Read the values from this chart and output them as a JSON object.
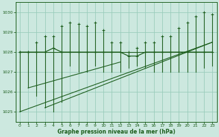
{
  "title": "Graphe pression niveau de la mer (hPa)",
  "bg_color": "#cce8df",
  "grid_color": "#99ccbb",
  "line_color": "#1a5c1a",
  "xlim": [
    -0.5,
    23.5
  ],
  "ylim": [
    1024.5,
    1030.5
  ],
  "yticks": [
    1025,
    1026,
    1027,
    1028,
    1029,
    1030
  ],
  "xticks": [
    0,
    1,
    2,
    3,
    4,
    5,
    6,
    7,
    8,
    9,
    10,
    11,
    12,
    13,
    14,
    15,
    16,
    17,
    18,
    19,
    20,
    21,
    22,
    23
  ],
  "hours": [
    0,
    1,
    2,
    3,
    4,
    5,
    6,
    7,
    8,
    9,
    10,
    11,
    12,
    13,
    14,
    15,
    16,
    17,
    18,
    19,
    20,
    21,
    22,
    23
  ],
  "pressure_main": [
    1028.0,
    1028.0,
    1028.0,
    1028.0,
    1028.2,
    1028.0,
    1028.0,
    1028.0,
    1028.0,
    1028.0,
    1028.0,
    1028.0,
    1028.0,
    1027.8,
    1027.8,
    1028.0,
    1028.0,
    1028.0,
    1028.0,
    1028.0,
    1028.0,
    1028.0,
    1028.0,
    1028.0
  ],
  "pressure_max": [
    1028.0,
    1028.0,
    1028.5,
    1028.8,
    1028.8,
    1029.3,
    1029.5,
    1029.4,
    1029.3,
    1029.5,
    1029.1,
    1028.5,
    1028.5,
    1028.0,
    1028.2,
    1028.5,
    1028.5,
    1028.8,
    1028.8,
    1029.2,
    1029.5,
    1029.8,
    1030.0,
    1029.9
  ],
  "pressure_min": [
    1025.0,
    1026.2,
    1025.8,
    1025.2,
    1025.0,
    1025.5,
    1027.3,
    1027.0,
    1027.0,
    1027.3,
    1027.0,
    1027.0,
    1027.0,
    1027.2,
    1027.3,
    1027.2,
    1027.0,
    1027.0,
    1027.0,
    1027.0,
    1027.0,
    1027.0,
    1027.2,
    1027.3
  ],
  "trend_lines": [
    {
      "x": [
        0,
        23
      ],
      "y": [
        1028.0,
        1028.0
      ]
    },
    {
      "x": [
        0,
        23
      ],
      "y": [
        1025.0,
        1028.5
      ]
    },
    {
      "x": [
        1,
        12
      ],
      "y": [
        1026.2,
        1027.5
      ]
    },
    {
      "x": [
        3,
        23
      ],
      "y": [
        1025.2,
        1028.5
      ]
    }
  ]
}
